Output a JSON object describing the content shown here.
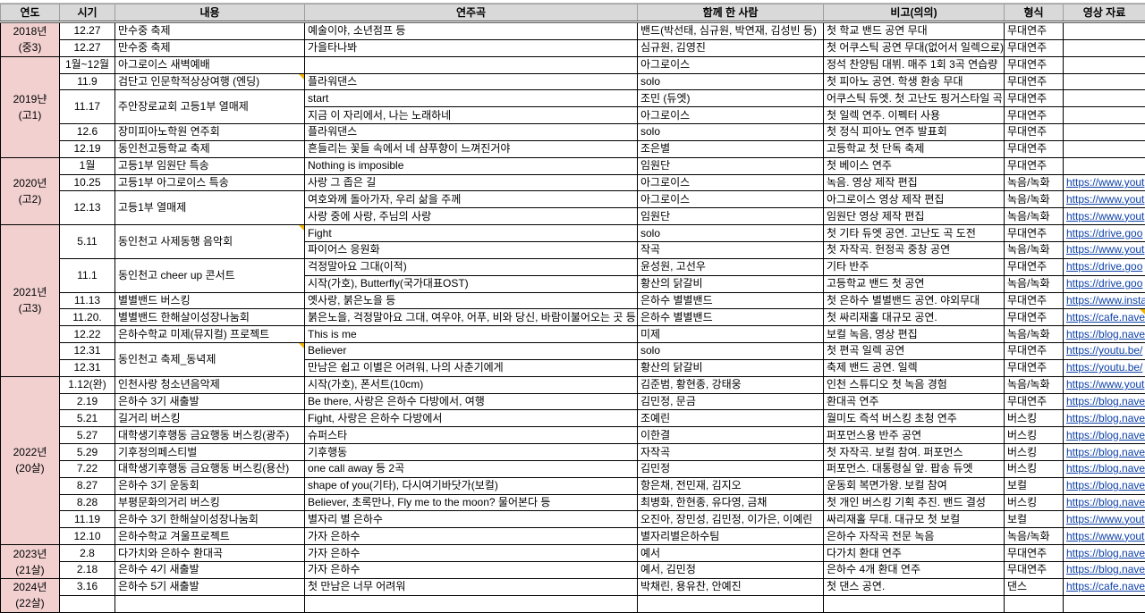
{
  "headers": [
    "연도",
    "시기",
    "내용",
    "연주곡",
    "함께 한 사람",
    "비고(의의)",
    "형식",
    "영상 자료"
  ],
  "colors": {
    "header_bg": "#d9d9d9",
    "year_bg": "#f2d0d0",
    "link": "#0b3fa8",
    "comment_marker": "#f2b200"
  },
  "groups": [
    {
      "year": "2018년\n(중3)",
      "events": [
        {
          "date": "12.27",
          "title": "만수중 축제",
          "songs": [
            {
              "song": "예술이야, 소년점프 등",
              "with": "밴드(박선태, 심규원, 박연재, 김성빈 등)",
              "note": "첫 학교 밴드 공연 무대",
              "format": "무대연주",
              "link": ""
            }
          ]
        },
        {
          "date": "12.27",
          "title": "만수중 축제",
          "songs": [
            {
              "song": "가을타나봐",
              "with": "심규원, 김영진",
              "note": "첫 어쿠스틱 공연 무대(없어서 일렉으로)",
              "format": "무대연주",
              "link": ""
            }
          ]
        }
      ]
    },
    {
      "year": "2019냔\n(고1)",
      "events": [
        {
          "date": "1월~12월",
          "title": "아그로이스 새벽예배",
          "songs": [
            {
              "song": "",
              "with": "아그로이스",
              "note": "정석 찬양팀 대뷔. 매주 1회 3곡 연습량",
              "format": "무대연주",
              "link": ""
            }
          ]
        },
        {
          "date": "11.9",
          "title": "검단고 인문학적상상여행 (엔딩)",
          "comment": true,
          "songs": [
            {
              "song": "플라워댄스",
              "with": "solo",
              "note": "첫 피아노 공연. 학생 환송 무대",
              "format": "무대연주",
              "link": ""
            }
          ]
        },
        {
          "date": "11.17",
          "title": "주안장로교회 고등1부 열매제",
          "songs": [
            {
              "song": "start",
              "with": "조민 (듀엣)",
              "note": "어쿠스틱 듀엣. 첫 고난도 핑거스타일 곡",
              "format": "무대연주",
              "link": ""
            },
            {
              "song": "지금 이 자리에서, 나는 노래하네",
              "with": "아그로이스",
              "note": "첫 일렉 연주. 이펙터 사용",
              "format": "무대연주",
              "link": ""
            }
          ]
        },
        {
          "date": "12.6",
          "title": "장미피아노학원 연주회",
          "songs": [
            {
              "song": "플라워댄스",
              "with": "solo",
              "note": "첫 정식 피아노 연주 발표회",
              "format": "무대연주",
              "link": ""
            }
          ]
        },
        {
          "date": "12.19",
          "title": "동인천고등학교 축제",
          "songs": [
            {
              "song": "흔들리는 꽃들 속에서 네 샴푸향이 느껴진거야",
              "with": "조은별",
              "note": "고등학교 첫 단독 축제",
              "format": "무대연주",
              "link": ""
            }
          ]
        }
      ]
    },
    {
      "year": "2020년\n(고2)",
      "events": [
        {
          "date": "1월",
          "title": "고등1부 임원단 특송",
          "songs": [
            {
              "song": "Nothing is imposible",
              "with": "임원단",
              "note": "첫 베이스 연주",
              "format": "무대연주",
              "link": ""
            }
          ]
        },
        {
          "date": "10.25",
          "title": "고등1부 아그로이스 특송",
          "songs": [
            {
              "song": "사랑 그 좁은 길",
              "with": "아그로이스",
              "note": "녹음. 영상 제작 편집",
              "format": "녹음/녹화",
              "link": "https://www.yout"
            }
          ]
        },
        {
          "date": "12.13",
          "title": "고등1부 열매제",
          "songs": [
            {
              "song": "여호와께 돌아가자, 우리 삶을 주께",
              "with": "아그로이스",
              "note": "아그로이스 영상 제작 편집",
              "format": "녹음/녹화",
              "link": "https://www.yout"
            },
            {
              "song": "사랑 중에 사랑, 주님의 사랑",
              "with": "임원단",
              "note": "임원단 영상 제작 편집",
              "format": "녹음/녹화",
              "link": "https://www.yout"
            }
          ]
        }
      ]
    },
    {
      "year": "2021년\n(고3)",
      "events": [
        {
          "date": "5.11",
          "title": "동인천고 사제동행 음악회",
          "comment": true,
          "songs": [
            {
              "song": "Fight",
              "with": "solo",
              "note": "첫 기타 듀엣 공연. 고난도 곡 도전",
              "format": "무대연주",
              "link": "https://drive.goo"
            },
            {
              "song": "파이어스 응원화",
              "with": "작곡",
              "note": "첫 자작곡. 헌정곡 중창 공연",
              "format": "녹음/녹화",
              "link": "https://www.yout"
            }
          ]
        },
        {
          "date": "11.1",
          "title": "동인천고 cheer up 콘서트",
          "songs": [
            {
              "song": "걱정말아요 그대(이적)",
              "with": "윤성원, 고선우",
              "note": "기타 반주",
              "format": "무대연주",
              "link": "https://drive.goo"
            },
            {
              "song": "시작(가호), Butterfly(국가대표OST)",
              "with": "황산의 닭갈비",
              "note": "고등학교 밴드 첫 공연",
              "format": "녹음/녹화",
              "link": "https://drive.goo"
            }
          ]
        },
        {
          "date": "11.13",
          "title": "별별밴드 버스킹",
          "songs": [
            {
              "song": "옛사랑, 붉은노을 등",
              "with": "은하수 별별밴드",
              "note": "첫 은하수 별별밴드 공연. 야외무대",
              "format": "무대연주",
              "link": "https://www.insta"
            }
          ]
        },
        {
          "date": "11.20.",
          "title": "별별밴드 한해살이성장나눔회",
          "songs": [
            {
              "song": "붉은노을, 걱정말아요 그대, 여우야, 어푸, 비와 당신, 바람이불어오는 곳 등",
              "with": "은하수 별별밴드",
              "note": "첫 싸리재홀 대규모 공연.",
              "format": "무대연주",
              "link": "https://cafe.nave",
              "link_comment": true
            }
          ]
        },
        {
          "date": "12.22",
          "title": "은하수학교 미제(뮤지컬) 프로젝트",
          "songs": [
            {
              "song": "This is me",
              "with": "미제",
              "note": "보컬 녹음, 영상 편집",
              "format": "녹음/녹화",
              "link": "https://blog.nave"
            }
          ]
        },
        {
          "date": null,
          "title": "동인천고 축제_동녁제",
          "comment": true,
          "songs": [
            {
              "date": "12.31",
              "song": "Believer",
              "with": "solo",
              "note": "첫 편곡 일렉 공연",
              "format": "무대연주",
              "link": "https://youtu.be/"
            },
            {
              "date": "12.31",
              "song": "만남은 쉽고 이별은 어려워, 나의 사춘기에게",
              "with": "황산의 닭갈비",
              "note": "축제 밴드 공연. 일렉",
              "format": "무대연주",
              "link": "https://youtu.be/"
            }
          ]
        }
      ]
    },
    {
      "year": "2022년\n(20살)",
      "events": [
        {
          "date": "1.12(완)",
          "title": "인천사랑 청소년음악제",
          "songs": [
            {
              "song": "시작(가호), 폰서트(10cm)",
              "with": "김준범, 황현종, 강태웅",
              "note": "인천 스튜디오 첫 녹음 경험",
              "format": "녹음/녹화",
              "link": "https://www.yout"
            }
          ]
        },
        {
          "date": "2.19",
          "title": "은하수 3기 새출발",
          "songs": [
            {
              "song": "Be there, 사랑은 은하수 다방에서, 여행",
              "with": "김민정, 문금",
              "note": "환대곡 연주",
              "format": "무대연주",
              "link": "https://blog.nave"
            }
          ]
        },
        {
          "date": "5.21",
          "title": "길거리 버스킹",
          "songs": [
            {
              "song": "Fight, 사랑은 은하수 다방에서",
              "with": "조예린",
              "note": "월미도 즉석 버스킹 초청 연주",
              "format": "버스킹",
              "link": "https://blog.nave"
            }
          ]
        },
        {
          "date": "5.27",
          "title": "대학생기후행동 금요행동 버스킹(광주)",
          "songs": [
            {
              "song": "슈퍼스타",
              "with": "이한결",
              "note": "퍼포먼스용 반주 공연",
              "format": "버스킹",
              "link": "https://blog.nave"
            }
          ]
        },
        {
          "date": "5.29",
          "title": "기후정의페스티벌",
          "songs": [
            {
              "song": "기후행동",
              "with": "자작곡",
              "note": "첫 자작곡. 보컬 참여. 퍼포먼스",
              "format": "버스킹",
              "link": "https://blog.nave"
            }
          ]
        },
        {
          "date": "7.22",
          "title": "대학생기후행동 금요행동 버스킹(용산)",
          "songs": [
            {
              "song": "one call away 등 2곡",
              "with": "김민정",
              "note": "퍼포먼스. 대통령실 앞. 팝송 듀엣",
              "format": "버스킹",
              "link": "https://blog.nave"
            }
          ]
        },
        {
          "date": "8.27",
          "title": "은하수 3기 운동회",
          "songs": [
            {
              "song": "shape of you(기타), 다시여기바닷가(보컬)",
              "with": "항은채, 전민재, 김지오",
              "note": "운동회 복면가왕. 보컬 참여",
              "format": "보컬",
              "link": "https://blog.nave"
            }
          ]
        },
        {
          "date": "8.28",
          "title": "부평문화의거리 버스킹",
          "songs": [
            {
              "song": "Believer, 초록만나, Fly me to the moon? 물어본다 등",
              "with": "최병화, 한현종, 유다영, 금채",
              "note": "첫 개인 버스킹 기획 추진. 밴드 결성",
              "format": "버스킹",
              "link": "https://blog.nave"
            }
          ]
        },
        {
          "date": "11.19",
          "title": "은하수 3기 한해살이성장나눔회",
          "songs": [
            {
              "song": "별자리 별 은하수",
              "with": "오진아, 장민성, 김민정, 이가은, 이예린",
              "note": "싸리재홀 무대. 대규모 첫 보컬",
              "format": "보컬",
              "link": "https://www.yout"
            }
          ]
        },
        {
          "date": "12.10",
          "title": "은하수학교 겨울프로젝트",
          "songs": [
            {
              "song": "가자 은하수",
              "with": "별자리별은하수팀",
              "note": "은하수 자작곡 전문 녹음",
              "format": "녹음/녹화",
              "link": "https://www.yout"
            }
          ]
        }
      ]
    },
    {
      "year": "2023년\n(21살)",
      "events": [
        {
          "date": "2.8",
          "title": "다가치와 은하수 환대곡",
          "songs": [
            {
              "song": "가자 은하수",
              "with": "예서",
              "note": "다가치 환대 연주",
              "format": "무대연주",
              "link": "https://blog.nave"
            }
          ]
        },
        {
          "date": "2.18",
          "title": "은하수 4기 새출발",
          "songs": [
            {
              "song": "가자 은하수",
              "with": "예서, 김민정",
              "note": "은하수 4개 환대 연주",
              "format": "무대연주",
              "link": "https://blog.nave"
            }
          ]
        }
      ]
    },
    {
      "year": "2024년\n(22살)",
      "events": [
        {
          "date": "3.16",
          "title": "은하수 5기 새출발",
          "songs": [
            {
              "song": "첫 만남은 너무 어려워",
              "with": "박채린, 용유찬, 안예진",
              "note": "첫 댄스 공연.",
              "format": "댄스",
              "link": "https://cafe.nave"
            }
          ]
        },
        {
          "date": "",
          "title": "",
          "songs": [
            {
              "song": "",
              "with": "",
              "note": "",
              "format": "",
              "link": ""
            }
          ]
        }
      ]
    }
  ]
}
